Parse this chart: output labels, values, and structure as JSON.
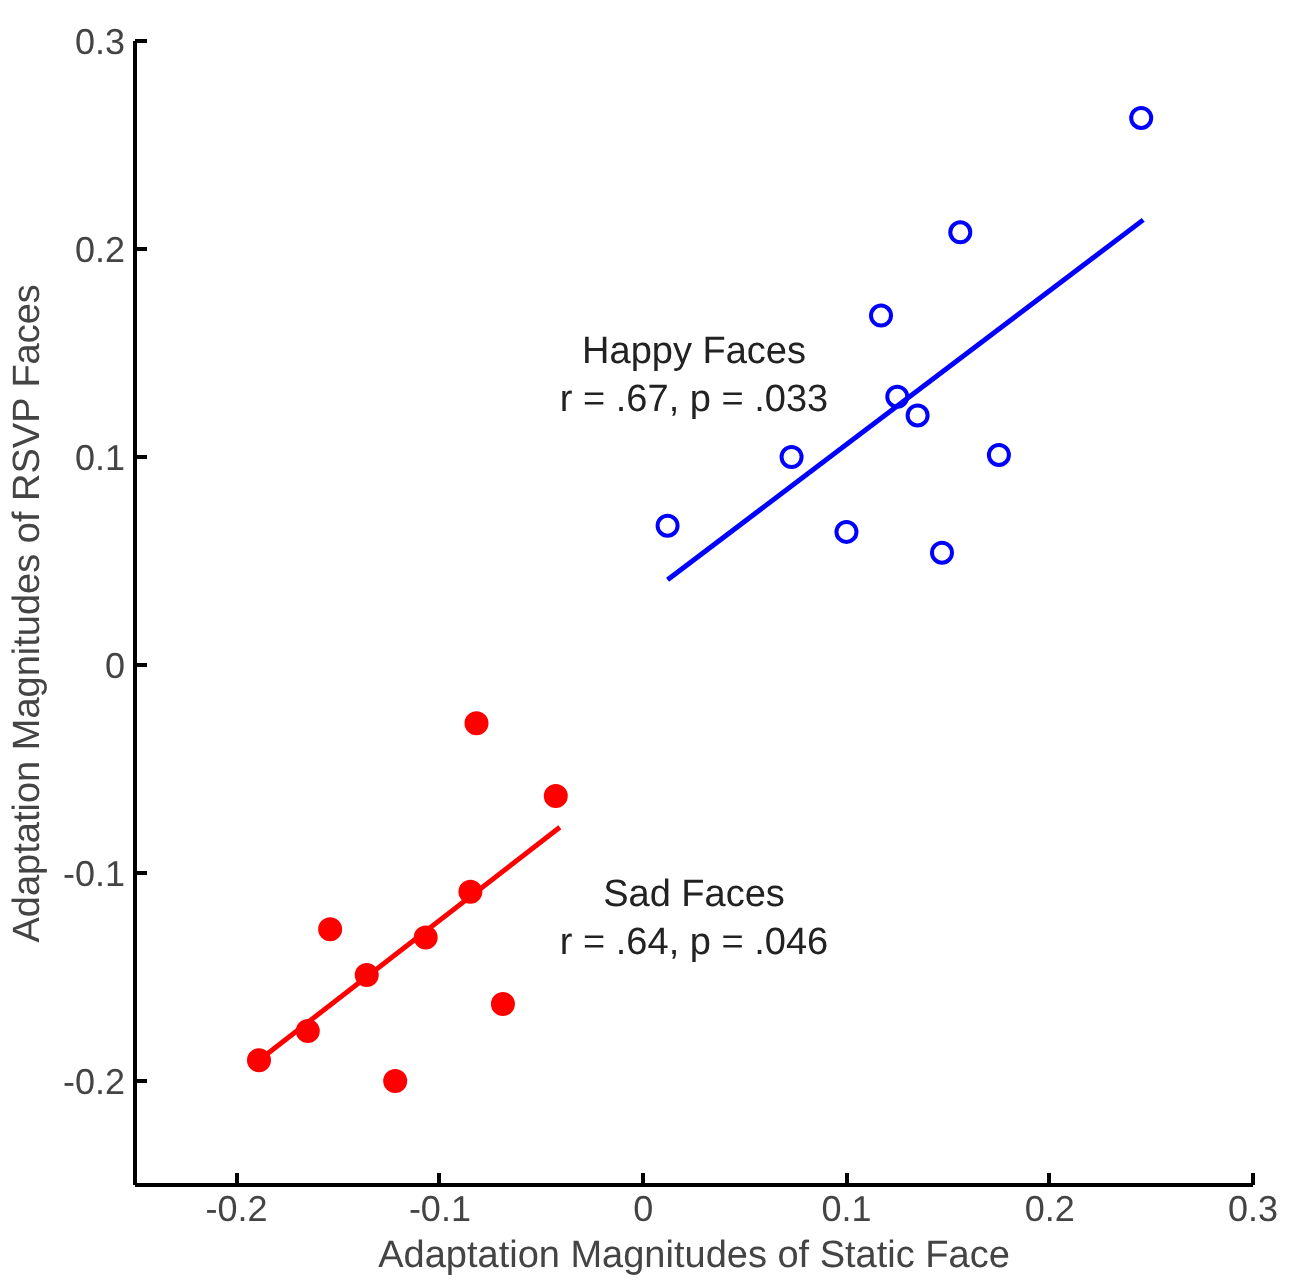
{
  "chart_data": {
    "type": "scatter",
    "xlabel": "Adaptation Magnitudes of Static Face",
    "ylabel": "Adaptation Magnitudes of RSVP Faces",
    "xlim": [
      -0.25,
      0.3
    ],
    "ylim": [
      -0.25,
      0.3
    ],
    "xticks": [
      -0.2,
      -0.1,
      0,
      0.1,
      0.2,
      0.3
    ],
    "yticks": [
      -0.2,
      -0.1,
      0,
      0.1,
      0.2,
      0.3
    ],
    "grid": false,
    "series": [
      {
        "name": "Happy Faces",
        "color": "#0000ff",
        "marker": "circle",
        "x": [
          0.012,
          0.073,
          0.1,
          0.117,
          0.125,
          0.135,
          0.147,
          0.156,
          0.175,
          0.245
        ],
        "values": [
          0.067,
          0.1,
          0.064,
          0.168,
          0.129,
          0.12,
          0.054,
          0.208,
          0.101,
          0.263
        ]
      },
      {
        "name": "Sad Faces",
        "color": "#ff0000",
        "marker": "circle",
        "x": [
          -0.189,
          -0.165,
          -0.154,
          -0.136,
          -0.122,
          -0.107,
          -0.085,
          -0.082,
          -0.069,
          -0.043
        ],
        "values": [
          -0.19,
          -0.176,
          -0.127,
          -0.149,
          -0.2,
          -0.131,
          -0.109,
          -0.028,
          -0.163,
          -0.063
        ]
      },
      {
        "type": "line",
        "color": "#0000ff",
        "x": [
          0.012,
          0.246
        ],
        "values": [
          0.041,
          0.214
        ]
      },
      {
        "type": "line",
        "color": "#ff0000",
        "x": [
          -0.189,
          -0.041
        ],
        "values": [
          -0.19,
          -0.078
        ]
      }
    ],
    "annotations": [
      "r = .67, p = .033",
      "r = .64, p = .046"
    ]
  }
}
